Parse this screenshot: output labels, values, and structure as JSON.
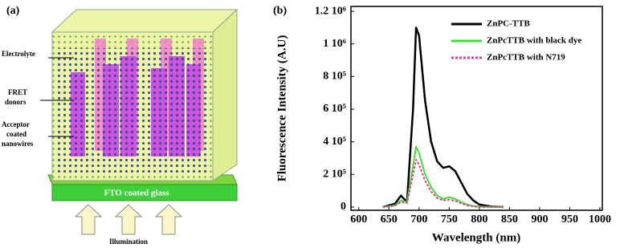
{
  "diagram": {
    "label": "(a)",
    "electrolyte": "Electrolyte",
    "fret_donors": [
      "FRET",
      "donors"
    ],
    "acceptor": [
      "Acceptor",
      "coated",
      "nanowires"
    ],
    "glass": "FTO coated glass",
    "illumination": "Illumination"
  },
  "chart_data": {
    "type": "line",
    "panel_label": "(b)",
    "x_label": "Wavelength (nm)",
    "y_label": "Fluorescence Intensity (A.U)",
    "x": [
      640,
      660,
      670,
      680,
      690,
      695,
      700,
      710,
      720,
      730,
      740,
      750,
      760,
      770,
      780,
      790,
      800,
      820,
      840
    ],
    "series": [
      {
        "name": "ZnPC-TTB",
        "color": "#000000",
        "dashed": false,
        "values": [
          0,
          20000,
          70000,
          30000,
          600000,
          1100000,
          1050000,
          650000,
          400000,
          280000,
          240000,
          250000,
          220000,
          150000,
          80000,
          40000,
          15000,
          3000,
          0
        ]
      },
      {
        "name": "ZnPcTTB with black dye",
        "color": "#44dd33",
        "dashed": false,
        "values": [
          0,
          10000,
          40000,
          30000,
          250000,
          370000,
          330000,
          200000,
          120000,
          70000,
          50000,
          60000,
          50000,
          30000,
          15000,
          5000,
          2000,
          0,
          0
        ]
      },
      {
        "name": "ZnPcTTB with N719",
        "color": "#e0409a",
        "dashed": true,
        "values": [
          0,
          8000,
          30000,
          25000,
          200000,
          290000,
          260000,
          160000,
          95000,
          55000,
          40000,
          45000,
          38000,
          22000,
          10000,
          4000,
          1000,
          0,
          0
        ]
      }
    ],
    "xlim": [
      587,
      1004
    ],
    "ylim": [
      -20000,
      1230000
    ],
    "xticks": [
      600,
      650,
      700,
      750,
      800,
      850,
      900,
      950,
      1000
    ],
    "yticks": [
      0,
      {
        "value": 200000,
        "label": "2 10⁵"
      },
      {
        "value": 400000,
        "label": "4 10⁵"
      },
      {
        "value": 600000,
        "label": "6 10⁵"
      },
      {
        "value": 800000,
        "label": "8 10⁵"
      },
      {
        "value": 1000000,
        "label": "1 10⁶"
      },
      {
        "value": 1200000,
        "label": "1.2 10⁶"
      }
    ]
  }
}
